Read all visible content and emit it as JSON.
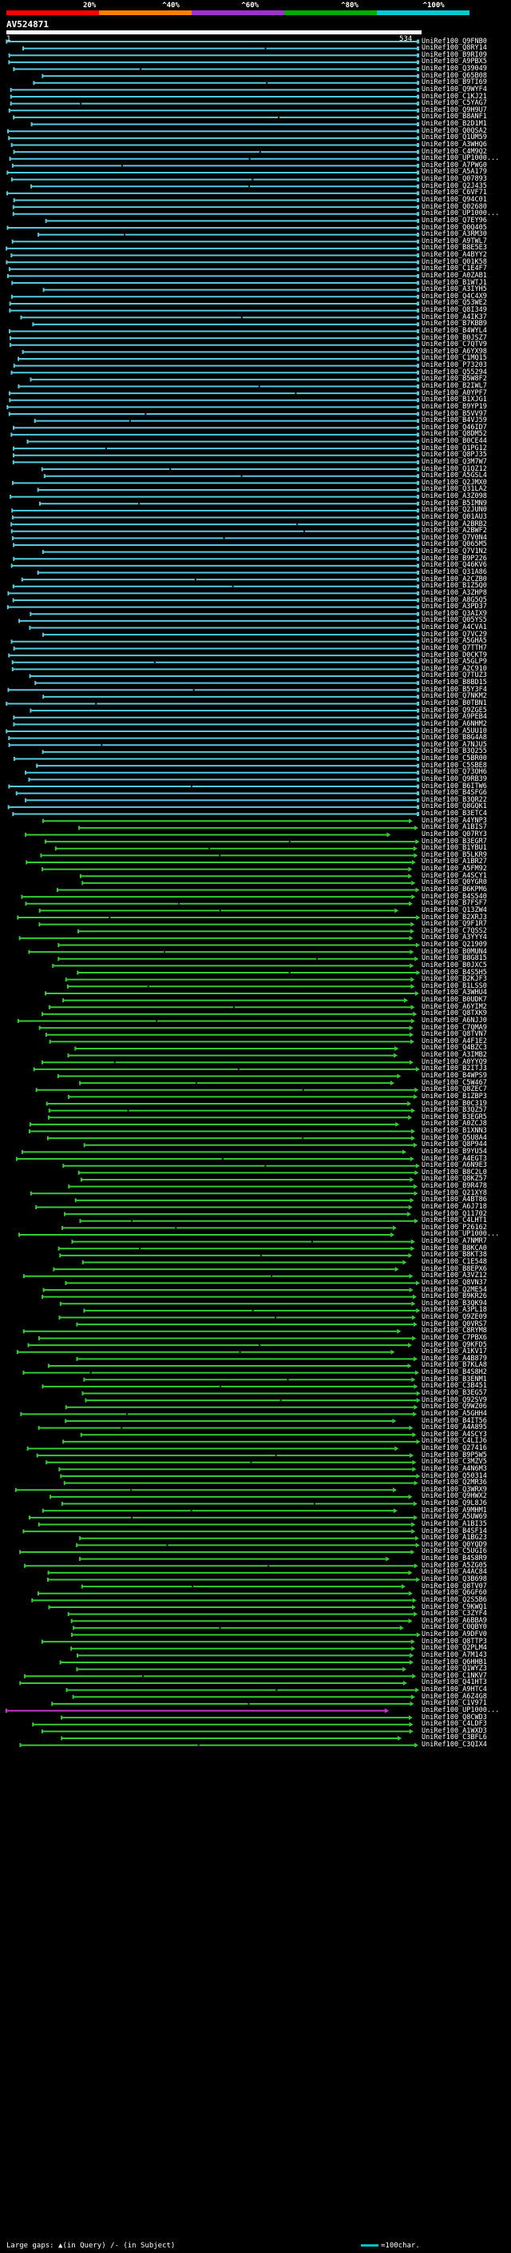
{
  "header": {
    "ticks": [
      "20%",
      "^40%",
      "^60%",
      "^80%",
      "^100%"
    ],
    "colors": [
      "#ff0000",
      "#ff8000",
      "#9933cc",
      "#00aa00",
      "#00cccc"
    ],
    "query_name": "AV524871",
    "query_start": "1",
    "query_end": "534"
  },
  "palette": {
    "cyan": "#55ccdd",
    "green": "#33cc33",
    "magenta": "#cc33cc"
  },
  "hits": [
    "UniRef100_Q9FNB0",
    "UniRef100_Q8RY14",
    "UniRef100_B9RI09",
    "UniRef100_A9PBX5",
    "UniRef100_Q39049",
    "UniRef100_Q65B08",
    "UniRef100_B9TI69",
    "UniRef100_Q9WYF4",
    "UniRef100_C1KJ21",
    "UniRef100_C5YAG7",
    "UniRef100_Q9H9U7",
    "UniRef100_B8ANF1",
    "UniRef100_B2D1M1",
    "UniRef100_Q0QSA2",
    "UniRef100_Q1UM59",
    "UniRef100_A3WHQ6",
    "UniRef100_C4M9Q2",
    "UniRef100_UP1000...",
    "UniRef100_A7PWG0",
    "UniRef100_A5A179",
    "UniRef100_Q07893",
    "UniRef100_Q2J435",
    "UniRef100_C6VF71",
    "UniRef100_Q94C01",
    "UniRef100_Q02680",
    "UniRef100_UP1000...",
    "UniRef100_Q7EY96",
    "UniRef100_Q0Q405",
    "UniRef100_A3RM30",
    "UniRef100_A9TWL7",
    "UniRef100_B8E5E3",
    "UniRef100_A4BYY2",
    "UniRef100_Q01K58",
    "UniRef100_C1E4F7",
    "UniRef100_A0ZAB1",
    "UniRef100_B1WTJ1",
    "UniRef100_A3IYH5",
    "UniRef100_Q4C4X9",
    "UniRef100_Q53WE2",
    "UniRef100_Q8I349",
    "UniRef100_A4IK37",
    "UniRef100_B7KBB9",
    "UniRef100_B4WYL4",
    "UniRef100_B0JSZ7",
    "UniRef100_C7QTV9",
    "UniRef100_A6YX98",
    "UniRef100_C1MQ15",
    "UniRef100_P73203",
    "UniRef100_Q55294",
    "UniRef100_B5W8F2",
    "UniRef100_B2IWL7",
    "UniRef100_A0YPF7",
    "UniRef100_B1XJG1",
    "UniRef100_B9YP19",
    "UniRef100_B5VV97",
    "UniRef100_B4VJ59",
    "UniRef100_Q46ID7",
    "UniRef100_Q8DM52",
    "UniRef100_B0CE44",
    "UniRef100_Q1PG12",
    "UniRef100_Q8PJ35",
    "UniRef100_Q3M7W7",
    "UniRef100_Q1QZ12",
    "UniRef100_A5GSL4",
    "UniRef100_Q2JMX0",
    "UniRef100_Q31LA2",
    "UniRef100_A3Z098",
    "UniRef100_B5IMN9",
    "UniRef100_Q2JUN0",
    "UniRef100_Q01AU3",
    "UniRef100_A2BRB2",
    "UniRef100_A2BWF2",
    "UniRef100_Q7V0N4",
    "UniRef100_Q065M5",
    "UniRef100_Q7V1N2",
    "UniRef100_B9P226",
    "UniRef100_Q46KV6",
    "UniRef100_Q31A86",
    "UniRef100_A2CZB0",
    "UniRef100_B1Z5Q0",
    "UniRef100_A3ZHP8",
    "UniRef100_A8G5Q5",
    "UniRef100_A3PD37",
    "UniRef100_Q3AIX9",
    "UniRef100_Q05YS5",
    "UniRef100_A4CVA1",
    "UniRef100_Q7VC29",
    "UniRef100_A5GHA5",
    "UniRef100_Q7TTH7",
    "UniRef100_D0CKT9",
    "UniRef100_A5GLP9",
    "UniRef100_A2C910",
    "UniRef100_Q7TUZ3",
    "UniRef100_B8BD15",
    "UniRef100_B5Y3F4",
    "UniRef100_Q7NKM2",
    "UniRef100_B0TBN1",
    "UniRef100_Q9ZGE5",
    "UniRef100_A9PEB4",
    "UniRef100_A6NHM2",
    "UniRef100_A5UU10",
    "UniRef100_B8G4A8",
    "UniRef100_A7NJU5",
    "UniRef100_B3Q255",
    "UniRef100_C5BR00",
    "UniRef100_C5SBE8",
    "UniRef100_Q73OH6",
    "UniRef100_Q9RB39",
    "UniRef100_B6ITW6",
    "UniRef100_B4SFG6",
    "UniRef100_B3QR22",
    "UniRef100_Q8GQK1",
    "UniRef100_B3ETC4",
    "UniRef100_A4YNP3",
    "UniRef100_A1BIS7",
    "UniRef100_Q07RY3",
    "UniRef100_B3EGR7",
    "UniRef100_B1YBU1",
    "UniRef100_B5LKR9",
    "UniRef100_A1BR27",
    "UniRef100_A5FM92",
    "UniRef100_A4SCY1",
    "UniRef100_Q0YGR0",
    "UniRef100_B6KPM6",
    "UniRef100_B4S540",
    "UniRef100_B7FSF7",
    "UniRef100_Q13ZW4",
    "UniRef100_B2XRJ3",
    "UniRef100_Q9F1R7",
    "UniRef100_C7QSS2",
    "UniRef100_A3YYY4",
    "UniRef100_Q21909",
    "UniRef100_B0MUN4",
    "UniRef100_B8G815",
    "UniRef100_B0JXC5",
    "UniRef100_B4S5H5",
    "UniRef100_B2KJF3",
    "UniRef100_B1LSS0",
    "UniRef100_A3WHU4",
    "UniRef100_B0UDK7",
    "UniRef100_A6YIM2",
    "UniRef100_Q8TXK9",
    "UniRef100_A6NJJ0",
    "UniRef100_C7QMA9",
    "UniRef100_Q8TVN7",
    "UniRef100_A4F1E2",
    "UniRef100_Q4BZC3",
    "UniRef100_A3IMB2",
    "UniRef100_A0YYQ9",
    "UniRef100_B2ITJ3",
    "UniRef100_B4WPS9",
    "UniRef100_C5W467",
    "UniRef100_Q8ZEC7",
    "UniRef100_B1ZBP3",
    "UniRef100_B0C319",
    "UniRef100_B3QZ57",
    "UniRef100_B3EGR5",
    "UniRef100_A0ZCJ8",
    "UniRef100_B1XNN3",
    "UniRef100_Q5U8A4",
    "UniRef100_Q8P944",
    "UniRef100_B9YU54",
    "UniRef100_A4EGT3",
    "UniRef100_A6N9E3",
    "UniRef100_B8C2L0",
    "UniRef100_Q8KZ57",
    "UniRef100_B9R478",
    "UniRef100_Q21XY8",
    "UniRef100_A4BT86",
    "UniRef100_A6J718",
    "UniRef100_Q11702",
    "UniRef100_C4LHT1",
    "UniRef100_P26162",
    "UniRef100_UP1000...",
    "UniRef100_A7NMR7",
    "UniRef100_B8KCA0",
    "UniRef100_B8KT38",
    "UniRef100_C1E548",
    "UniRef100_B8EPX6",
    "UniRef100_A3VZ12",
    "UniRef100_Q8VN37",
    "UniRef100_Q2ME54",
    "UniRef100_B9KR26",
    "UniRef100_B3QK94",
    "UniRef100_A3PL18",
    "UniRef100_Q9ZE09",
    "UniRef100_Q0VRS7",
    "UniRef100_C8RYM8",
    "UniRef100_C7PBX6",
    "UniRef100_Q9KFD5",
    "UniRef100_A1KV17",
    "UniRef100_A4B879",
    "UniRef100_B7KLA8",
    "UniRef100_B4S8H2",
    "UniRef100_B3ENM1",
    "UniRef100_C3B451",
    "UniRef100_B3EG57",
    "UniRef100_Q92SV9",
    "UniRef100_Q9WZ06",
    "UniRef100_A5GHH4",
    "UniRef100_B4IT56",
    "UniRef100_A4A895",
    "UniRef100_A4SCY3",
    "UniRef100_C4LIJ6",
    "UniRef100_Q27416",
    "UniRef100_B9P5W5",
    "UniRef100_C3MZV5",
    "UniRef100_A4N6M3",
    "UniRef100_Q50314",
    "UniRef100_Q2MR36",
    "UniRef100_Q3WRX9",
    "UniRef100_Q9HWX2",
    "UniRef100_Q9L8J6",
    "UniRef100_A9MHM1",
    "UniRef100_A5UW69",
    "UniRef100_A1BI35",
    "UniRef100_B4SF14",
    "UniRef100_A1BG23",
    "UniRef100_Q0YQD9",
    "UniRef100_C5UGI6",
    "UniRef100_B4S8R9",
    "UniRef100_A5ZG05",
    "UniRef100_A4AC84",
    "UniRef100_Q3B698",
    "UniRef100_Q8TV07",
    "UniRef100_Q6GF60",
    "UniRef100_Q2S5B6",
    "UniRef100_C9KWQ1",
    "UniRef100_C3ZYF4",
    "UniRef100_A6BBA9",
    "UniRef100_C0QBY0",
    "UniRef100_A9DFV0",
    "UniRef100_Q8TTP3",
    "UniRef100_Q2PLM4",
    "UniRef100_A7M143",
    "UniRef100_Q6HHB1",
    "UniRef100_Q1WYZ3",
    "UniRef100_C1NKV7",
    "UniRef100_Q41HT3",
    "UniRef100_A9HTC4",
    "UniRef100_A6Z4G8",
    "UniRef100_C1V971",
    "UniRef100_UP1000...",
    "UniRef100_Q8CWD3",
    "UniRef100_C4LDF3",
    "UniRef100_A1WXD3",
    "UniRef100_C3BFL6",
    "UniRef100_C3QIX4"
  ],
  "footer": {
    "large_gaps_label": "Large gaps:",
    "in_query_marker": "▲(in Query)",
    "in_subject_marker": "/- (in Subject)",
    "scale_note": "=100char."
  }
}
